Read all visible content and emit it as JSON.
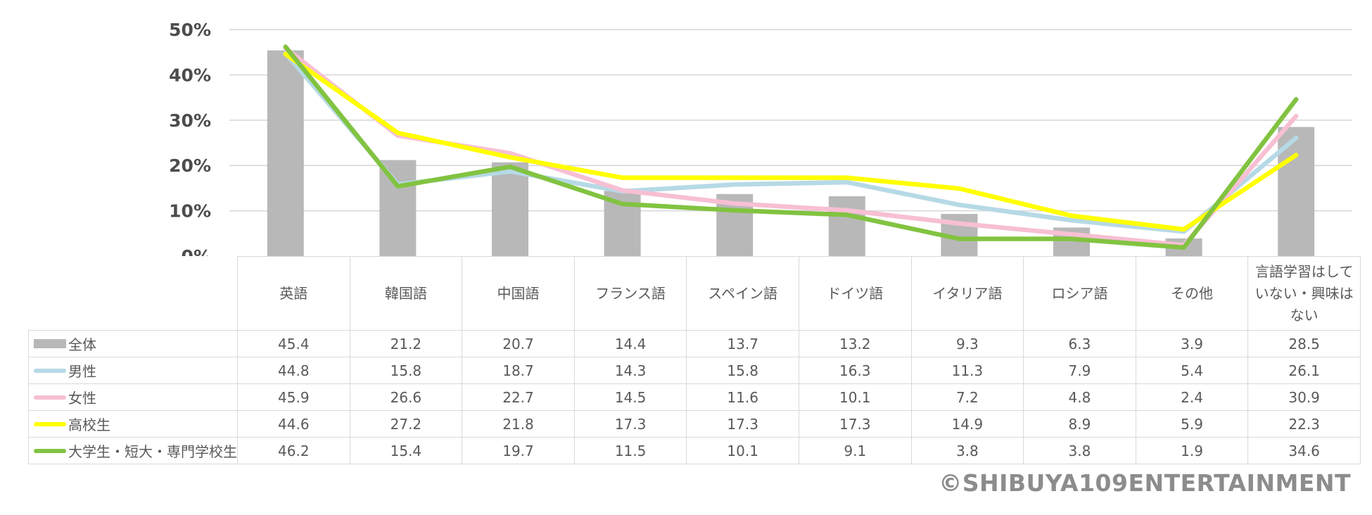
{
  "watermark": "©SHIBUYA109ENTERTAINMENT",
  "axis": {
    "y_ticks": [
      "0%",
      "10%",
      "20%",
      "30%",
      "40%",
      "50%"
    ],
    "grid_color": "#d6d6d6",
    "tick_color": "#4c4c4c"
  },
  "chart_data": {
    "type": "bar+line",
    "title": "",
    "xlabel": "",
    "ylabel": "",
    "ylim": [
      0,
      50
    ],
    "y_tick_step": 10,
    "grid": true,
    "legend_position": "table-left-column",
    "categories": [
      "英語",
      "韓国語",
      "中国語",
      "フランス語",
      "スペイン語",
      "ドイツ語",
      "イタリア語",
      "ロシア語",
      "その他",
      "言語学習はしていない・興味はない"
    ],
    "bar_series": {
      "name": "全体",
      "color": "#b8b8b8",
      "values": [
        45.4,
        21.2,
        20.7,
        14.4,
        13.7,
        13.2,
        9.3,
        6.3,
        3.9,
        28.5
      ]
    },
    "line_series": [
      {
        "name": "男性",
        "color": "#b6d9e6",
        "values": [
          44.8,
          15.8,
          18.7,
          14.3,
          15.8,
          16.3,
          11.3,
          7.9,
          5.4,
          26.1
        ]
      },
      {
        "name": "女性",
        "color": "#f7bfd4",
        "values": [
          45.9,
          26.6,
          22.7,
          14.5,
          11.6,
          10.1,
          7.2,
          4.8,
          2.4,
          30.9
        ]
      },
      {
        "name": "高校生",
        "color": "#ffff00",
        "values": [
          44.6,
          27.2,
          21.8,
          17.3,
          17.3,
          17.3,
          14.9,
          8.9,
          5.9,
          22.3
        ]
      },
      {
        "name": "大学生・短大・専門学校生",
        "color": "#82c341",
        "values": [
          46.2,
          15.4,
          19.7,
          11.5,
          10.1,
          9.1,
          3.8,
          3.8,
          1.9,
          34.6
        ]
      }
    ]
  }
}
